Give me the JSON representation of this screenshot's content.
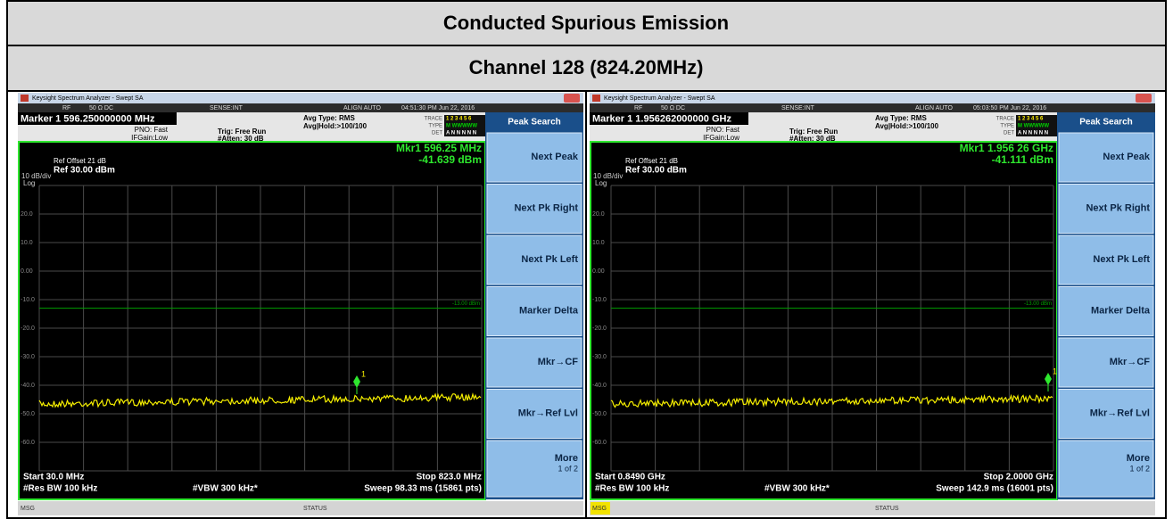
{
  "header": {
    "title": "Conducted Spurious Emission",
    "subtitle": "Channel 128 (824.20MHz)"
  },
  "panels": [
    {
      "window_title": "Keysight Spectrum Analyzer - Swept SA",
      "status_row": [
        "RF",
        "50 Ω  DC",
        "SENSE:INT",
        "ALIGN AUTO",
        "04:51:30 PM Jun 22, 2016"
      ],
      "marker": "Marker 1 596.250000000 MHz",
      "pno": "PNO: Fast",
      "ifgain": "IFGain:Low",
      "trig": "Trig: Free Run",
      "atten": "#Atten: 30 dB",
      "avg_type": "Avg Type: RMS",
      "avg_hold": "Avg|Hold:>100/100",
      "trace_labels": [
        "TRACE",
        "TYPE",
        "DET"
      ],
      "trace_rows": [
        "1 2 3 4 5 6",
        "M WWWWW",
        "A N N N N N"
      ],
      "ref_offset": "Ref Offset 21 dB",
      "ref_level": "Ref 30.00 dBm",
      "scale": "10 dB/div",
      "log": "Log",
      "mkr_freq": "Mkr1 596.25 MHz",
      "mkr_level": "-41.639 dBm",
      "y_labels": [
        "20.0",
        "10.0",
        "0.00",
        "-10.0",
        "-20.0",
        "-30.0",
        "-40.0",
        "-50.0",
        "-60.0"
      ],
      "limit_label": "-13.00 dBm",
      "marker_tag": "1",
      "start": "Start 30.0 MHz",
      "stop": "Stop 823.0 MHz",
      "res_bw": "#Res BW 100 kHz",
      "vbw": "#VBW 300 kHz*",
      "sweep": "Sweep  98.33 ms (15861 pts)",
      "softkey_title": "Peak Search",
      "softkeys": [
        "Next Peak",
        "Next Pk Right",
        "Next Pk Left",
        "Marker Delta",
        "Mkr→CF",
        "Mkr→Ref Lvl"
      ],
      "more": "More",
      "page": "1 of 2",
      "msg": "MSG",
      "status": "STATUS"
    },
    {
      "window_title": "Keysight Spectrum Analyzer - Swept SA",
      "status_row": [
        "RF",
        "50 Ω  DC",
        "SENSE:INT",
        "ALIGN AUTO",
        "05:03:50 PM Jun 22, 2016"
      ],
      "marker": "Marker 1 1.956262000000 GHz",
      "pno": "PNO: Fast",
      "ifgain": "IFGain:Low",
      "trig": "Trig: Free Run",
      "atten": "#Atten: 30 dB",
      "avg_type": "Avg Type: RMS",
      "avg_hold": "Avg|Hold:>100/100",
      "trace_labels": [
        "TRACE",
        "TYPE",
        "DET"
      ],
      "trace_rows": [
        "1 2 3 4 5 6",
        "M WWWWW",
        "A N N N N N"
      ],
      "ref_offset": "Ref Offset 21 dB",
      "ref_level": "Ref 30.00 dBm",
      "scale": "10 dB/div",
      "log": "Log",
      "mkr_freq": "Mkr1 1.956 26 GHz",
      "mkr_level": "-41.111 dBm",
      "y_labels": [
        "20.0",
        "10.0",
        "0.00",
        "-10.0",
        "-20.0",
        "-30.0",
        "-40.0",
        "-50.0",
        "-60.0"
      ],
      "limit_label": "-13.00 dBm",
      "marker_tag": "1",
      "start": "Start 0.8490 GHz",
      "stop": "Stop 2.0000 GHz",
      "res_bw": "#Res BW 100 kHz",
      "vbw": "#VBW 300 kHz*",
      "sweep": "Sweep  142.9 ms (16001 pts)",
      "softkey_title": "Peak Search",
      "softkeys": [
        "Next Peak",
        "Next Pk Right",
        "Next Pk Left",
        "Marker Delta",
        "Mkr→CF",
        "Mkr→Ref Lvl"
      ],
      "more": "More",
      "page": "1 of 2",
      "msg": "MSG",
      "status": "STATUS"
    }
  ]
}
